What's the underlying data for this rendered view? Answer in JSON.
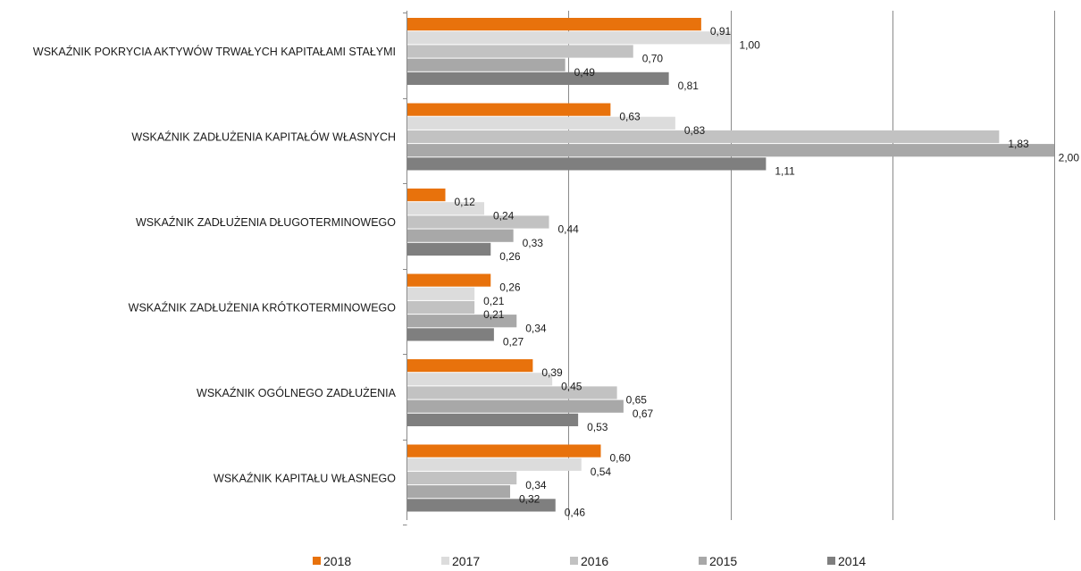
{
  "chart_data": {
    "type": "bar",
    "orientation": "horizontal",
    "categories": [
      "WSKAŹNIK POKRYCIA AKTYWÓW TRWAŁYCH KAPITAŁAMI STAŁYMI",
      "WSKAŹNIK ZADŁUŻENIA KAPITAŁÓW WŁASNYCH",
      "WSKAŹNIK ZADŁUŻENIA DŁUGOTERMINOWEGO",
      "WSKAŹNIK ZADŁUŻENIA KRÓTKOTERMINOWEGO",
      "WSKAŹNIK OGÓLNEGO ZADŁUŻENIA",
      "WSKAŹNIK KAPITAŁU WŁASNEGO"
    ],
    "series": [
      {
        "name": "2018",
        "color": "#e8720c",
        "values": [
          0.91,
          0.63,
          0.12,
          0.26,
          0.39,
          0.6
        ],
        "labels": [
          "0,91",
          "0,63",
          "0,12",
          "0,26",
          "0,39",
          "0,60"
        ]
      },
      {
        "name": "2017",
        "color": "#dcdcdc",
        "values": [
          1.0,
          0.83,
          0.24,
          0.21,
          0.45,
          0.54
        ],
        "labels": [
          "1,00",
          "0,83",
          "0,24",
          "0,21",
          "0,45",
          "0,54"
        ]
      },
      {
        "name": "2016",
        "color": "#c2c2c2",
        "values": [
          0.7,
          1.83,
          0.44,
          0.21,
          0.65,
          0.34
        ],
        "labels": [
          "0,70",
          "1,83",
          "0,44",
          "0,21",
          "0,65",
          "0,34"
        ]
      },
      {
        "name": "2015",
        "color": "#a8a8a8",
        "values": [
          0.49,
          2.0,
          0.33,
          0.34,
          0.67,
          0.32
        ],
        "labels": [
          "0,49",
          "2,00",
          "0,33",
          "0,34",
          "0,67",
          "0,32"
        ]
      },
      {
        "name": "2014",
        "color": "#7f7f7f",
        "values": [
          0.81,
          1.11,
          0.26,
          0.27,
          0.53,
          0.46
        ],
        "labels": [
          "0,81",
          "1,11",
          "0,26",
          "0,27",
          "0,53",
          "0,46"
        ]
      }
    ],
    "xlim": [
      0,
      2.0
    ],
    "grid_step": 0.5,
    "grid": true,
    "legend_position": "bottom"
  }
}
